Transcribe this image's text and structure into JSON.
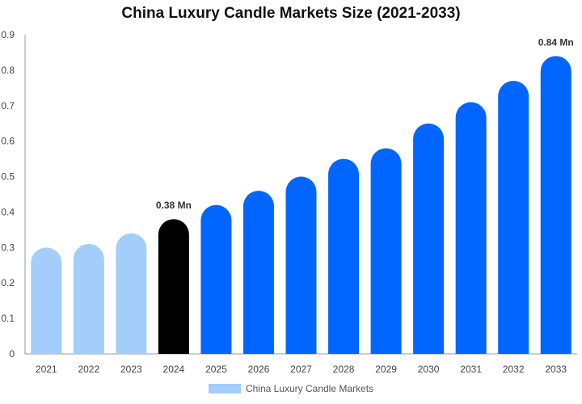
{
  "chart_data": {
    "type": "bar",
    "title": "China Luxury Candle Markets Size (2021-2033)",
    "categories": [
      "2021",
      "2022",
      "2023",
      "2024",
      "2025",
      "2026",
      "2027",
      "2028",
      "2029",
      "2030",
      "2031",
      "2032",
      "2033"
    ],
    "series": [
      {
        "name": "China Luxury Candle Markets",
        "values": [
          0.3,
          0.31,
          0.34,
          0.38,
          0.42,
          0.46,
          0.5,
          0.55,
          0.58,
          0.65,
          0.71,
          0.77,
          0.84
        ]
      }
    ],
    "ylim": [
      0,
      0.9
    ],
    "yticks": [
      0,
      0.1,
      0.2,
      0.3,
      0.4,
      0.5,
      0.6,
      0.7,
      0.8,
      0.9
    ],
    "ytick_labels": [
      "0",
      "0.1",
      "0.2",
      "0.3",
      "0.4",
      "0.5",
      "0.6",
      "0.7",
      "0.8",
      "0.9"
    ],
    "data_labels": [
      {
        "category": "2024",
        "text": "0.38 Mn"
      },
      {
        "category": "2033",
        "text": "0.84 Mn"
      }
    ],
    "legend": {
      "position": "bottom",
      "label": "China Luxury Candle Markets"
    },
    "colors": {
      "historical": "#a3cdfb",
      "current": "#000000",
      "forecast": "#0066ff",
      "grid": "#dddddd",
      "axis": "#999999"
    },
    "bar_color_groups": [
      "historical",
      "historical",
      "historical",
      "current",
      "forecast",
      "forecast",
      "forecast",
      "forecast",
      "forecast",
      "forecast",
      "forecast",
      "forecast",
      "forecast"
    ],
    "grid": false
  }
}
